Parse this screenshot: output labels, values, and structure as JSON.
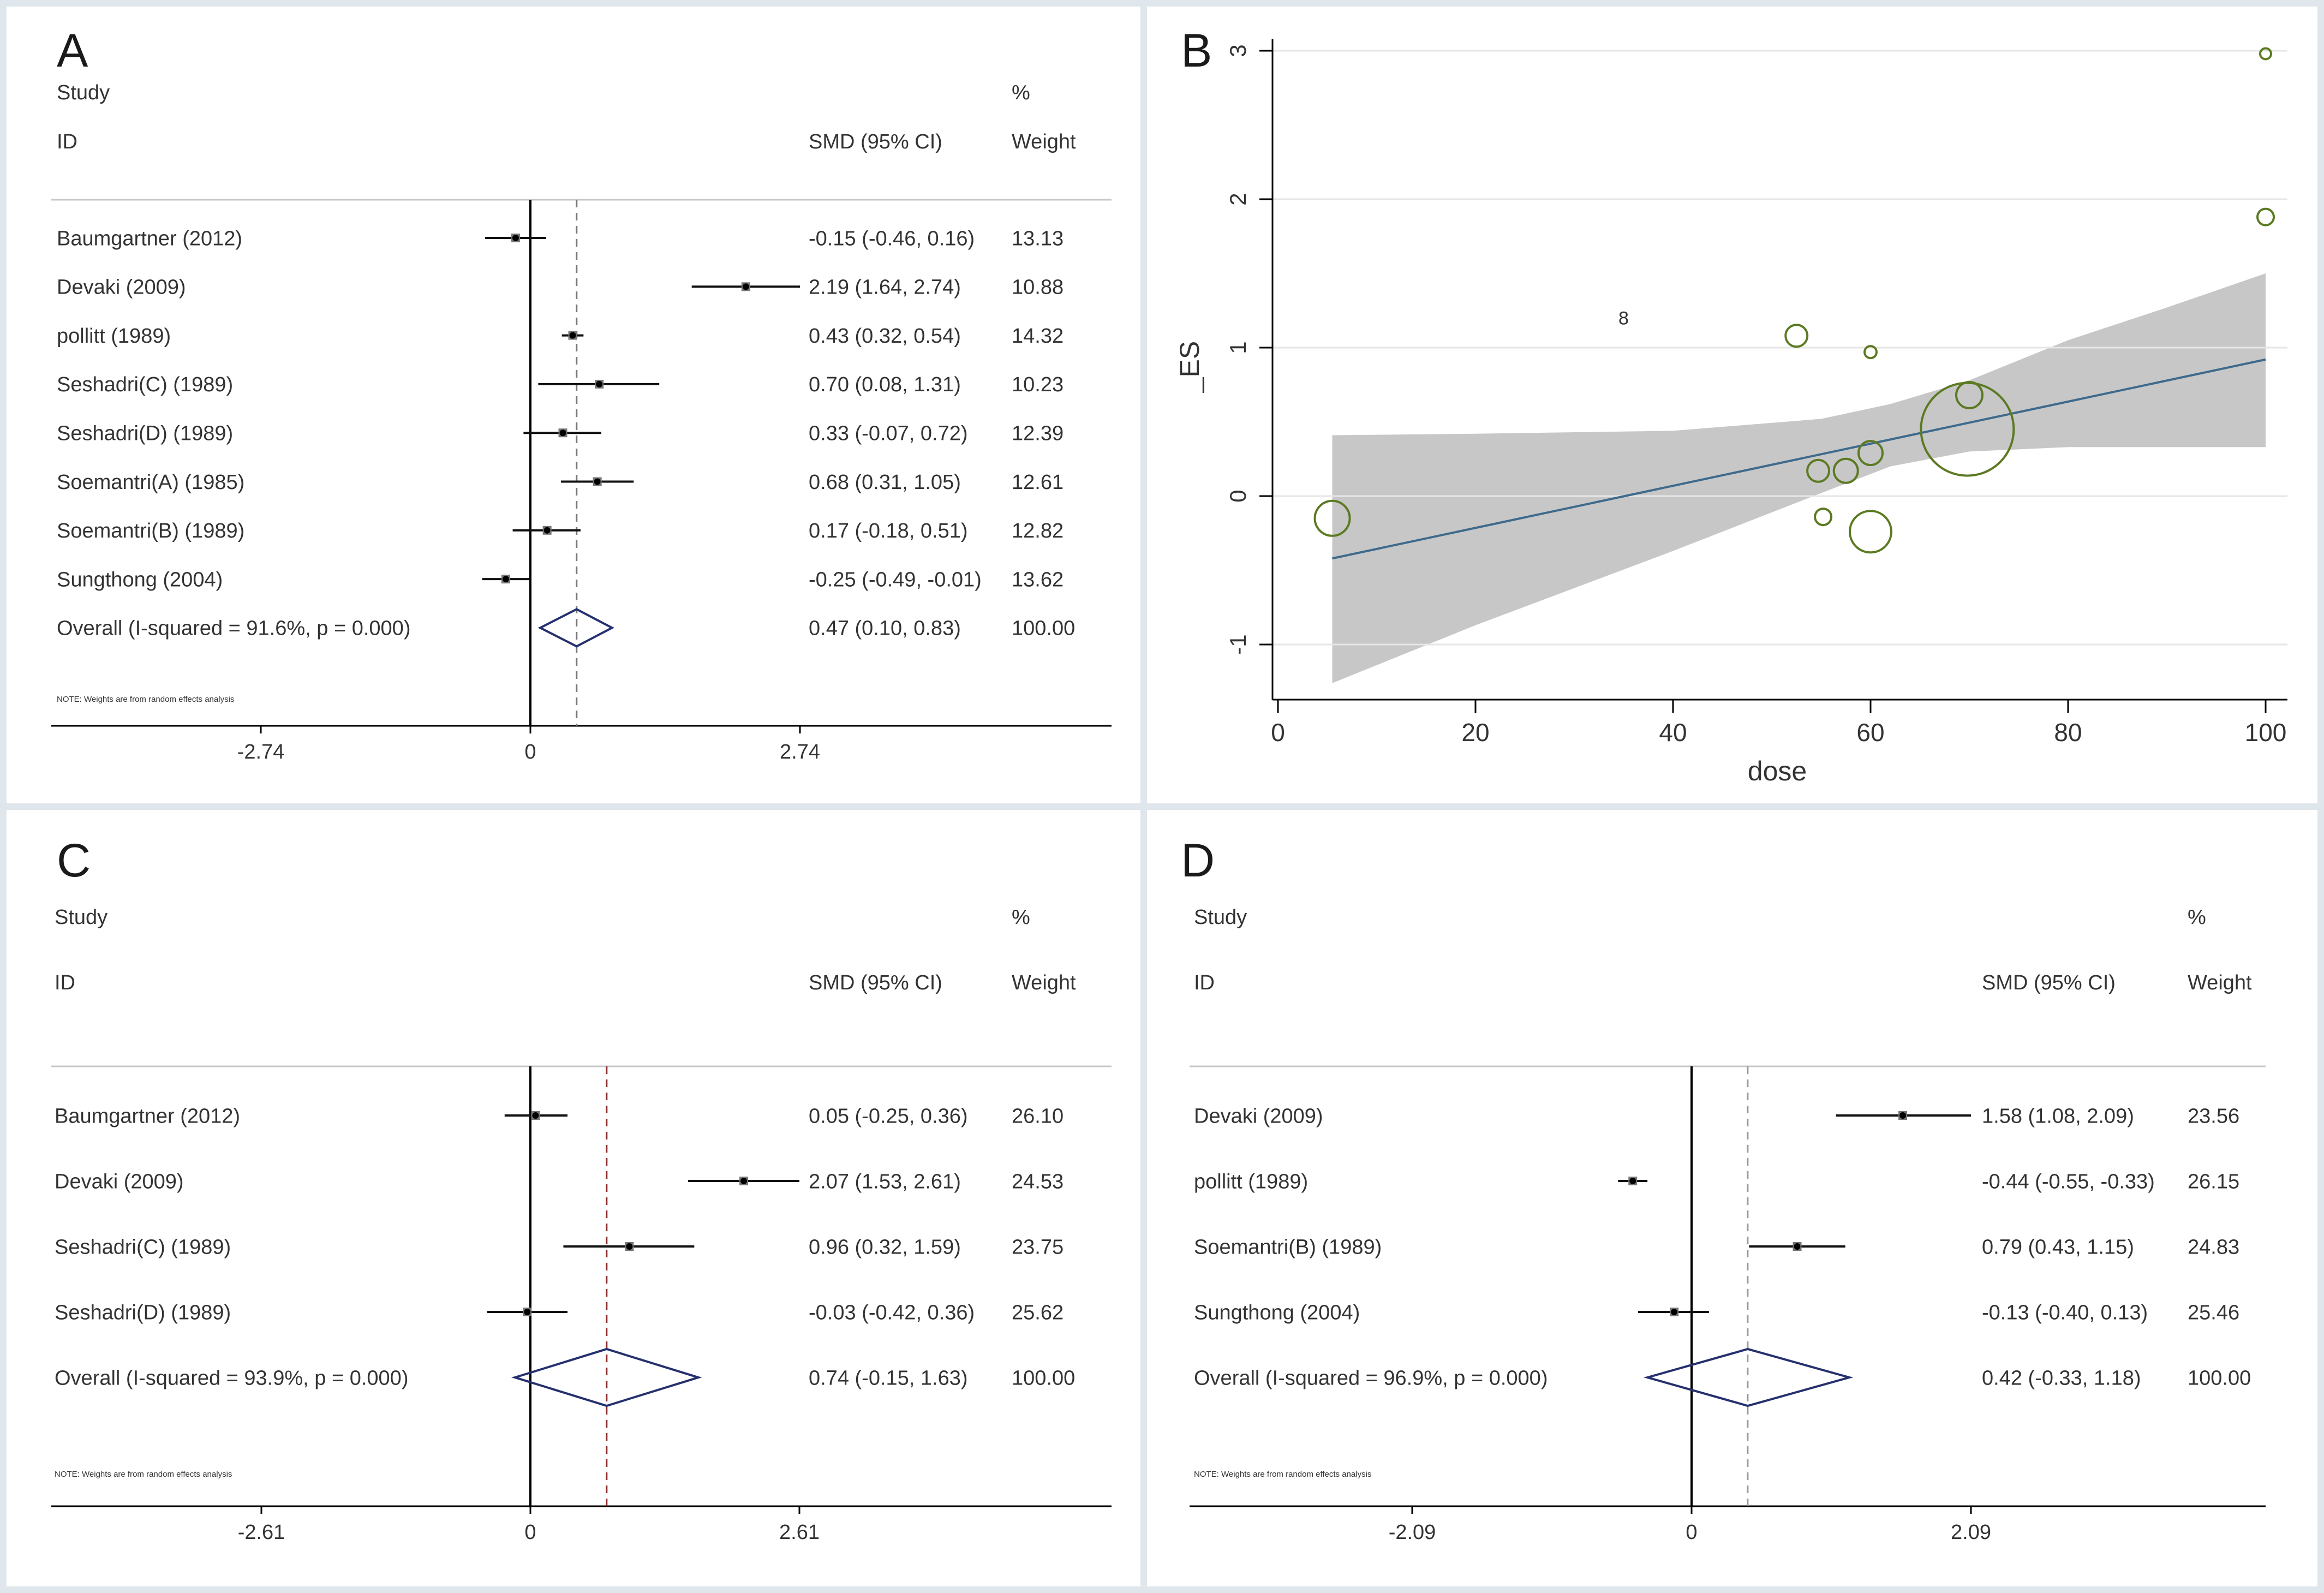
{
  "colors": {
    "line": "#000000",
    "ci_line": "#111111",
    "diamond": "#25306e",
    "dash_A": "#777777",
    "dash_C": "#8b2a2a",
    "dash_D": "#9a9a9a",
    "bubble": "#5b7a22",
    "fit_line": "#3e6a8c",
    "band": "#c7c7c7"
  },
  "chart_data": [
    {
      "type": "forest",
      "panel_label": "A",
      "header": {
        "study": "Study",
        "id": "ID",
        "smd": "SMD (95% CI)",
        "pct": "%",
        "weight": "Weight"
      },
      "axis": {
        "min": -2.74,
        "max": 2.74,
        "ticks": [
          {
            "v": -2.74,
            "label": "-2.74"
          },
          {
            "v": 0,
            "label": "0"
          },
          {
            "v": 2.74,
            "label": "2.74"
          }
        ]
      },
      "studies": [
        {
          "name": "Baumgartner (2012)",
          "smd": -0.15,
          "lo": -0.46,
          "hi": 0.16,
          "ci_text": "-0.15 (-0.46, 0.16)",
          "weight": "13.13"
        },
        {
          "name": "Devaki  (2009)",
          "smd": 2.19,
          "lo": 1.64,
          "hi": 2.74,
          "ci_text": "2.19 (1.64, 2.74)",
          "weight": "10.88"
        },
        {
          "name": "pollitt (1989)",
          "smd": 0.43,
          "lo": 0.32,
          "hi": 0.54,
          "ci_text": "0.43 (0.32, 0.54)",
          "weight": "14.32"
        },
        {
          "name": "Seshadri(C) (1989)",
          "smd": 0.7,
          "lo": 0.08,
          "hi": 1.31,
          "ci_text": "0.70 (0.08, 1.31)",
          "weight": "10.23"
        },
        {
          "name": "Seshadri(D) (1989)",
          "smd": 0.33,
          "lo": -0.07,
          "hi": 0.72,
          "ci_text": "0.33 (-0.07, 0.72)",
          "weight": "12.39"
        },
        {
          "name": "Soemantri(A) (1985)",
          "smd": 0.68,
          "lo": 0.31,
          "hi": 1.05,
          "ci_text": "0.68 (0.31, 1.05)",
          "weight": "12.61"
        },
        {
          "name": "Soemantri(B) (1989)",
          "smd": 0.17,
          "lo": -0.18,
          "hi": 0.51,
          "ci_text": "0.17 (-0.18, 0.51)",
          "weight": "12.82"
        },
        {
          "name": "Sungthong (2004)",
          "smd": -0.25,
          "lo": -0.49,
          "hi": -0.01,
          "ci_text": "-0.25 (-0.49, -0.01)",
          "weight": "13.62"
        }
      ],
      "overall": {
        "label": "Overall  (I-squared = 91.6%, p = 0.000)",
        "smd": 0.47,
        "lo": 0.1,
        "hi": 0.83,
        "ci_text": "0.47 (0.10, 0.83)",
        "weight": "100.00"
      },
      "note": "NOTE: Weights are from random effects analysis"
    },
    {
      "type": "scatter",
      "panel_label": "B",
      "xlabel": "dose",
      "ylabel": "_ES",
      "xlim": [
        -5,
        100
      ],
      "ylim": [
        -1.35,
        3.1
      ],
      "xticks": [
        0,
        20,
        40,
        60,
        80,
        100
      ],
      "yticks": [
        -1,
        0,
        1,
        2,
        3
      ],
      "points": [
        {
          "x": 100,
          "y": 2.98,
          "r": 10
        },
        {
          "x": 100,
          "y": 1.88,
          "r": 15
        },
        {
          "x": 52.5,
          "y": 1.08,
          "r": 20
        },
        {
          "x": 60,
          "y": 0.97,
          "r": 11
        },
        {
          "x": 70,
          "y": 0.68,
          "r": 24
        },
        {
          "x": 69.8,
          "y": 0.45,
          "r": 85
        },
        {
          "x": 60,
          "y": 0.29,
          "r": 22
        },
        {
          "x": 57.5,
          "y": 0.17,
          "r": 22
        },
        {
          "x": 54.7,
          "y": 0.17,
          "r": 20
        },
        {
          "x": 55.2,
          "y": -0.14,
          "r": 15
        },
        {
          "x": 60,
          "y": -0.24,
          "r": 38
        },
        {
          "x": 5.5,
          "y": -0.15,
          "r": 32
        }
      ],
      "marker_label": {
        "text": "8",
        "x": 35,
        "y": 1.2
      },
      "fit": {
        "x0": 5.5,
        "y0": -0.42,
        "x1": 100,
        "y1": 0.92
      },
      "band_upper": [
        [
          5.5,
          0.41
        ],
        [
          20,
          0.42
        ],
        [
          40,
          0.44
        ],
        [
          55,
          0.52
        ],
        [
          62,
          0.62
        ],
        [
          70,
          0.78
        ],
        [
          80,
          1.05
        ],
        [
          90,
          1.27
        ],
        [
          100,
          1.5
        ]
      ],
      "band_lower": [
        [
          5.5,
          -1.26
        ],
        [
          20,
          -0.87
        ],
        [
          40,
          -0.37
        ],
        [
          55,
          0.02
        ],
        [
          62,
          0.2
        ],
        [
          70,
          0.3
        ],
        [
          80,
          0.33
        ],
        [
          90,
          0.33
        ],
        [
          100,
          0.33
        ]
      ]
    },
    {
      "type": "forest",
      "panel_label": "C",
      "header": {
        "study": "Study",
        "id": "ID",
        "smd": "SMD (95% CI)",
        "pct": "%",
        "weight": "Weight"
      },
      "axis": {
        "min": -2.61,
        "max": 2.61,
        "ticks": [
          {
            "v": -2.61,
            "label": "-2.61"
          },
          {
            "v": 0,
            "label": "0"
          },
          {
            "v": 2.61,
            "label": "2.61"
          }
        ]
      },
      "studies": [
        {
          "name": "Baumgartner (2012)",
          "smd": 0.05,
          "lo": -0.25,
          "hi": 0.36,
          "ci_text": "0.05 (-0.25, 0.36)",
          "weight": "26.10"
        },
        {
          "name": "Devaki  (2009)",
          "smd": 2.07,
          "lo": 1.53,
          "hi": 2.61,
          "ci_text": "2.07 (1.53, 2.61)",
          "weight": "24.53"
        },
        {
          "name": "Seshadri(C) (1989)",
          "smd": 0.96,
          "lo": 0.32,
          "hi": 1.59,
          "ci_text": "0.96 (0.32, 1.59)",
          "weight": "23.75"
        },
        {
          "name": "Seshadri(D) (1989)",
          "smd": -0.03,
          "lo": -0.42,
          "hi": 0.36,
          "ci_text": "-0.03 (-0.42, 0.36)",
          "weight": "25.62"
        }
      ],
      "overall": {
        "label": "Overall  (I-squared = 93.9%, p = 0.000)",
        "smd": 0.74,
        "lo": -0.15,
        "hi": 1.63,
        "ci_text": "0.74 (-0.15, 1.63)",
        "weight": "100.00"
      },
      "note": "NOTE: Weights are from random effects analysis"
    },
    {
      "type": "forest",
      "panel_label": "D",
      "header": {
        "study": "Study",
        "id": "ID",
        "smd": "SMD (95% CI)",
        "pct": "%",
        "weight": "Weight"
      },
      "axis": {
        "min": -2.09,
        "max": 2.09,
        "ticks": [
          {
            "v": -2.09,
            "label": "-2.09"
          },
          {
            "v": 0,
            "label": "0"
          },
          {
            "v": 2.09,
            "label": "2.09"
          }
        ]
      },
      "studies": [
        {
          "name": "Devaki  (2009)",
          "smd": 1.58,
          "lo": 1.08,
          "hi": 2.09,
          "ci_text": "1.58 (1.08, 2.09)",
          "weight": "23.56"
        },
        {
          "name": "pollitt (1989)",
          "smd": -0.44,
          "lo": -0.55,
          "hi": -0.33,
          "ci_text": "-0.44 (-0.55, -0.33)",
          "weight": "26.15"
        },
        {
          "name": "Soemantri(B) (1989)",
          "smd": 0.79,
          "lo": 0.43,
          "hi": 1.15,
          "ci_text": "0.79 (0.43, 1.15)",
          "weight": "24.83"
        },
        {
          "name": "Sungthong (2004)",
          "smd": -0.13,
          "lo": -0.4,
          "hi": 0.13,
          "ci_text": "-0.13 (-0.40, 0.13)",
          "weight": "25.46"
        }
      ],
      "overall": {
        "label": "Overall  (I-squared = 96.9%, p = 0.000)",
        "smd": 0.42,
        "lo": -0.33,
        "hi": 1.18,
        "ci_text": "0.42 (-0.33, 1.18)",
        "weight": "100.00"
      },
      "note": "NOTE: Weights are from random effects analysis"
    }
  ]
}
